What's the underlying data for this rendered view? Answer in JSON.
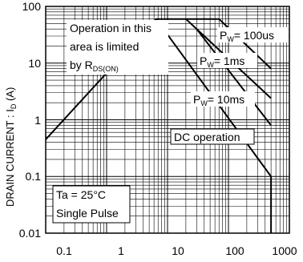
{
  "chart_data": {
    "type": "line",
    "x_scale": "log",
    "y_scale": "log",
    "xlim": [
      0.1,
      1000
    ],
    "ylim": [
      0.01,
      100
    ],
    "x_ticks": [
      "0.1",
      "1",
      "10",
      "100",
      "1000"
    ],
    "y_ticks": [
      "100",
      "10",
      "1",
      "0.1",
      "0.01"
    ],
    "grid": true,
    "ylabel": "DRAIN CURRENT : I",
    "ylabel_sub": "D",
    "ylabel_unit": " (A)",
    "series": [
      {
        "name": "PW = 100us",
        "points": [
          [
            0.1,
            0.45
          ],
          [
            6.5,
            60
          ],
          [
            70,
            60
          ],
          [
            500,
            8
          ]
        ]
      },
      {
        "name": "PW = 1ms",
        "points": [
          [
            20,
            60
          ],
          [
            500,
            2.4
          ]
        ]
      },
      {
        "name": "PW = 10ms",
        "points": [
          [
            500,
            0.8
          ]
        ]
      },
      {
        "name": "DC operation",
        "points": [
          [
            6.5,
            60
          ],
          [
            500,
            0.1
          ],
          [
            500,
            0.01
          ]
        ]
      }
    ],
    "annotations": {
      "rds_line1": "Operation in this",
      "rds_line2": "area is limited",
      "rds_line3_prefix": "by  R",
      "rds_line3_sub": "DS(ON)",
      "pw100_pre": "P",
      "pw100_sub": "W",
      "pw100_post": "= 100us",
      "pw1_pre": "P",
      "pw1_sub": "W",
      "pw1_post": "= 1ms",
      "pw10_pre": "P",
      "pw10_sub": "W",
      "pw10_post": "= 10ms",
      "dc": "DC operation",
      "cond1": "Ta = 25°C",
      "cond2": "Single Pulse"
    }
  }
}
